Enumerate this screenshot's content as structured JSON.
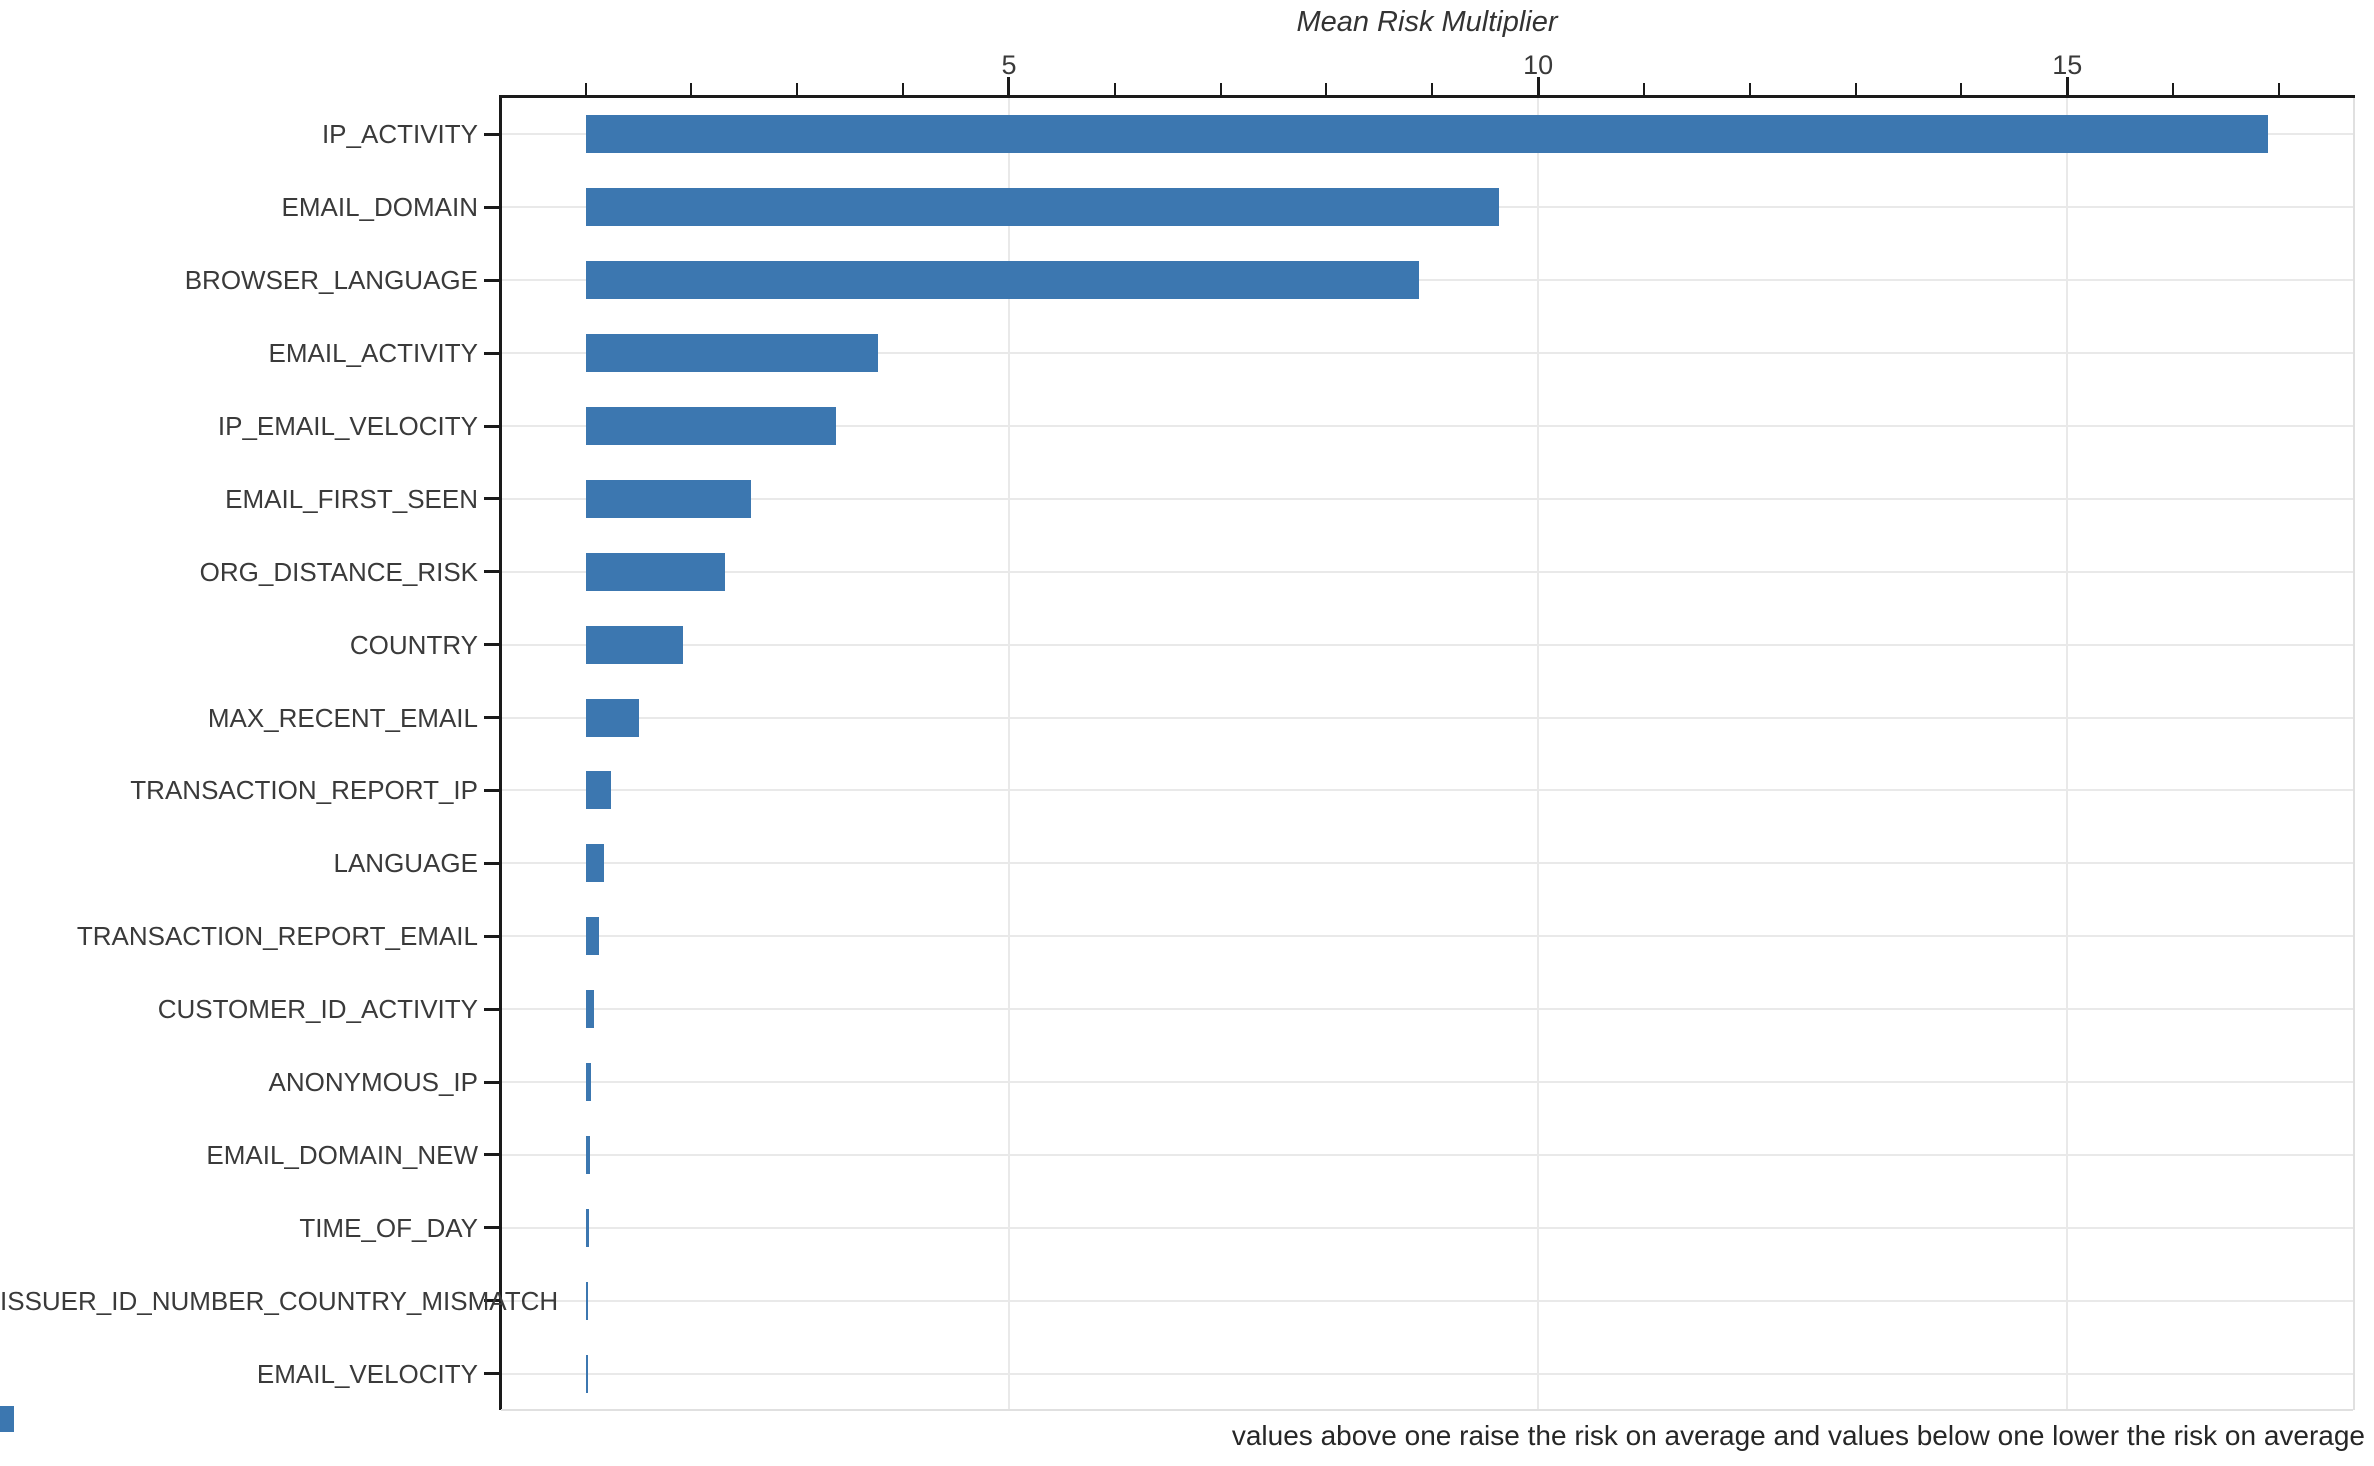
{
  "chart_data": {
    "type": "bar",
    "orientation": "horizontal",
    "title": "Mean Risk Multiplier",
    "categories": [
      "IP_ACTIVITY",
      "EMAIL_DOMAIN",
      "BROWSER_LANGUAGE",
      "EMAIL_ACTIVITY",
      "IP_EMAIL_VELOCITY",
      "EMAIL_FIRST_SEEN",
      "ORG_DISTANCE_RISK",
      "COUNTRY",
      "MAX_RECENT_EMAIL",
      "TRANSACTION_REPORT_IP",
      "LANGUAGE",
      "TRANSACTION_REPORT_EMAIL",
      "CUSTOMER_ID_ACTIVITY",
      "ANONYMOUS_IP",
      "EMAIL_DOMAIN_NEW",
      "TIME_OF_DAY",
      "ISSUER_ID_NUMBER_COUNTRY_MISMATCH",
      "EMAIL_VELOCITY"
    ],
    "values": [
      16.9,
      9.63,
      8.87,
      3.76,
      3.37,
      2.56,
      2.32,
      1.92,
      1.5,
      1.24,
      1.17,
      1.13,
      1.08,
      1.05,
      1.04,
      1.03,
      1.02,
      1.01
    ],
    "bar_base": 1,
    "xlim": [
      0.2,
      17.7
    ],
    "x_major_ticks": [
      5,
      10,
      15
    ],
    "x_minor_tick_step": 1,
    "xlabel": "",
    "ylabel": "",
    "legend": "none",
    "grid": "horizontal category lines + vertical major-tick lines",
    "colors": {
      "bar": "#3c77b0",
      "grid": "#e9e9e9",
      "axis": "#1a1a1a",
      "faint_spine": "#e0e0e0",
      "text": "#3a3a3a"
    }
  },
  "footnote": "values above one raise the risk on average and values below one lower the risk on average"
}
